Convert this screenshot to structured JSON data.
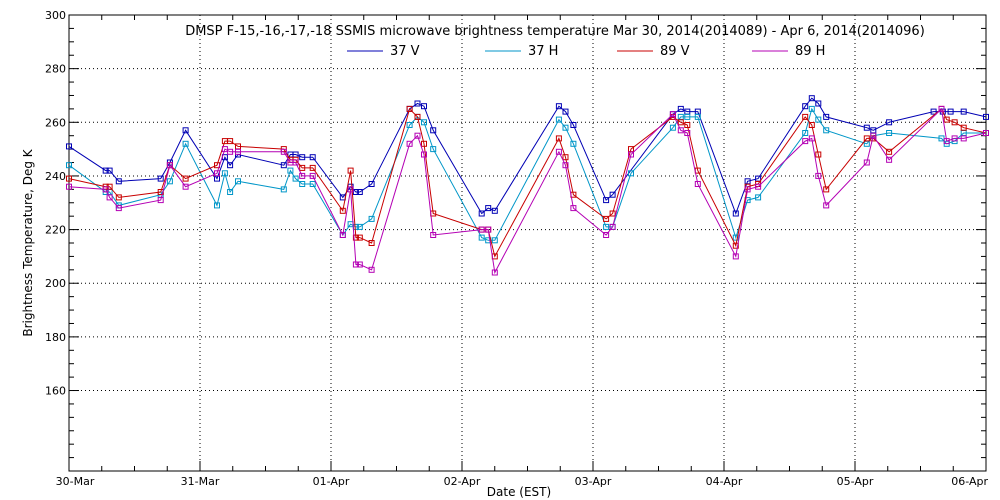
{
  "chart_data": {
    "type": "line",
    "title": "DMSP F-15,-16,-17,-18 SSMIS microwave brightness temperature Mar 30, 2014(2014089) - Apr  6, 2014(2014096)",
    "xlabel": "Date (EST)",
    "ylabel": "Brightness Temperature, Deg K",
    "xlim": [
      0,
      7
    ],
    "ylim": [
      130,
      300
    ],
    "yticks": [
      160,
      180,
      200,
      220,
      240,
      260,
      280,
      300
    ],
    "xticks": [
      {
        "x": 0,
        "label": "30-Mar"
      },
      {
        "x": 1,
        "label": "31-Mar"
      },
      {
        "x": 2,
        "label": "01-Apr"
      },
      {
        "x": 3,
        "label": "02-Apr"
      },
      {
        "x": 4,
        "label": "03-Apr"
      },
      {
        "x": 5,
        "label": "04-Apr"
      },
      {
        "x": 6,
        "label": "05-Apr"
      },
      {
        "x": 7,
        "label": "06-Apr"
      }
    ],
    "grid": true,
    "legend_position": "top-center",
    "series": [
      {
        "name": "37 V",
        "color": "#0000b4",
        "x": [
          0.0,
          0.28,
          0.31,
          0.38,
          0.7,
          0.77,
          0.89,
          1.13,
          1.19,
          1.23,
          1.29,
          1.64,
          1.69,
          1.73,
          1.78,
          1.86,
          2.09,
          2.15,
          2.19,
          2.22,
          2.31,
          2.6,
          2.66,
          2.71,
          2.78,
          3.15,
          3.2,
          3.25,
          3.74,
          3.79,
          3.85,
          4.1,
          4.15,
          4.61,
          4.67,
          4.72,
          4.8,
          5.09,
          5.18,
          5.26,
          5.62,
          5.67,
          5.72,
          5.78,
          6.09,
          6.14,
          6.26,
          6.6,
          6.67,
          6.73,
          6.83,
          7.0
        ],
        "values": [
          251,
          242,
          242,
          238,
          239,
          245,
          257,
          239,
          247,
          244,
          248,
          244,
          248,
          248,
          247,
          247,
          232,
          236,
          234,
          234,
          237,
          265,
          267,
          266,
          257,
          226,
          228,
          227,
          266,
          264,
          259,
          231,
          233,
          263,
          265,
          264,
          264,
          226,
          238,
          239,
          266,
          269,
          267,
          262,
          258,
          257,
          260,
          264,
          264,
          264,
          264,
          262
        ]
      },
      {
        "name": "37 H",
        "color": "#0096c8",
        "x": [
          0.0,
          0.28,
          0.31,
          0.38,
          0.7,
          0.77,
          0.89,
          1.13,
          1.19,
          1.23,
          1.29,
          1.64,
          1.69,
          1.73,
          1.78,
          1.86,
          2.09,
          2.15,
          2.19,
          2.22,
          2.31,
          2.6,
          2.66,
          2.71,
          2.78,
          3.15,
          3.2,
          3.25,
          3.74,
          3.79,
          3.85,
          4.1,
          4.15,
          4.29,
          4.61,
          4.67,
          4.72,
          4.8,
          5.09,
          5.18,
          5.26,
          5.62,
          5.67,
          5.72,
          5.78,
          6.09,
          6.14,
          6.26,
          6.66,
          6.7,
          6.76,
          6.83,
          7.0
        ],
        "values": [
          244,
          234,
          234,
          229,
          233,
          238,
          252,
          229,
          241,
          234,
          238,
          235,
          242,
          239,
          237,
          237,
          218,
          222,
          221,
          221,
          224,
          259,
          262,
          260,
          250,
          217,
          216,
          216,
          261,
          258,
          252,
          221,
          221,
          241,
          258,
          262,
          262,
          262,
          217,
          231,
          232,
          256,
          265,
          261,
          257,
          252,
          255,
          256,
          254,
          252,
          253,
          256,
          256
        ]
      },
      {
        "name": "89 V",
        "color": "#c80000",
        "x": [
          0.0,
          0.28,
          0.31,
          0.38,
          0.7,
          0.77,
          0.89,
          1.13,
          1.19,
          1.23,
          1.29,
          1.64,
          1.69,
          1.73,
          1.78,
          1.86,
          2.09,
          2.15,
          2.19,
          2.22,
          2.31,
          2.6,
          2.66,
          2.71,
          2.78,
          3.15,
          3.2,
          3.25,
          3.74,
          3.79,
          3.85,
          4.1,
          4.15,
          4.29,
          4.61,
          4.67,
          4.72,
          4.8,
          5.09,
          5.18,
          5.26,
          5.62,
          5.67,
          5.72,
          5.78,
          6.09,
          6.14,
          6.26,
          6.66,
          6.7,
          6.76,
          6.83,
          7.0
        ],
        "values": [
          239,
          236,
          236,
          232,
          234,
          244,
          239,
          244,
          253,
          253,
          251,
          250,
          246,
          246,
          243,
          243,
          227,
          242,
          217,
          217,
          215,
          265,
          262,
          252,
          226,
          220,
          220,
          210,
          254,
          247,
          233,
          224,
          226,
          250,
          262,
          260,
          259,
          242,
          214,
          236,
          237,
          262,
          259,
          248,
          235,
          254,
          254,
          249,
          265,
          261,
          260,
          258,
          256
        ]
      },
      {
        "name": "89 H",
        "color": "#b400b4",
        "x": [
          0.0,
          0.28,
          0.31,
          0.38,
          0.7,
          0.77,
          0.89,
          1.13,
          1.19,
          1.23,
          1.29,
          1.64,
          1.69,
          1.73,
          1.78,
          1.86,
          2.09,
          2.15,
          2.19,
          2.22,
          2.31,
          2.6,
          2.66,
          2.71,
          2.78,
          3.15,
          3.2,
          3.25,
          3.74,
          3.79,
          3.85,
          4.1,
          4.15,
          4.29,
          4.61,
          4.67,
          4.72,
          4.8,
          5.09,
          5.18,
          5.26,
          5.62,
          5.67,
          5.72,
          5.78,
          6.09,
          6.14,
          6.26,
          6.66,
          6.7,
          6.76,
          6.83,
          7.0
        ],
        "values": [
          236,
          235,
          232,
          228,
          231,
          244,
          236,
          241,
          250,
          249,
          249,
          249,
          245,
          245,
          240,
          240,
          218,
          235,
          207,
          207,
          205,
          252,
          255,
          248,
          218,
          220,
          220,
          204,
          249,
          244,
          228,
          218,
          221,
          248,
          263,
          257,
          256,
          237,
          210,
          235,
          236,
          253,
          254,
          240,
          229,
          245,
          255,
          246,
          265,
          253,
          254,
          254,
          256
        ]
      }
    ]
  }
}
